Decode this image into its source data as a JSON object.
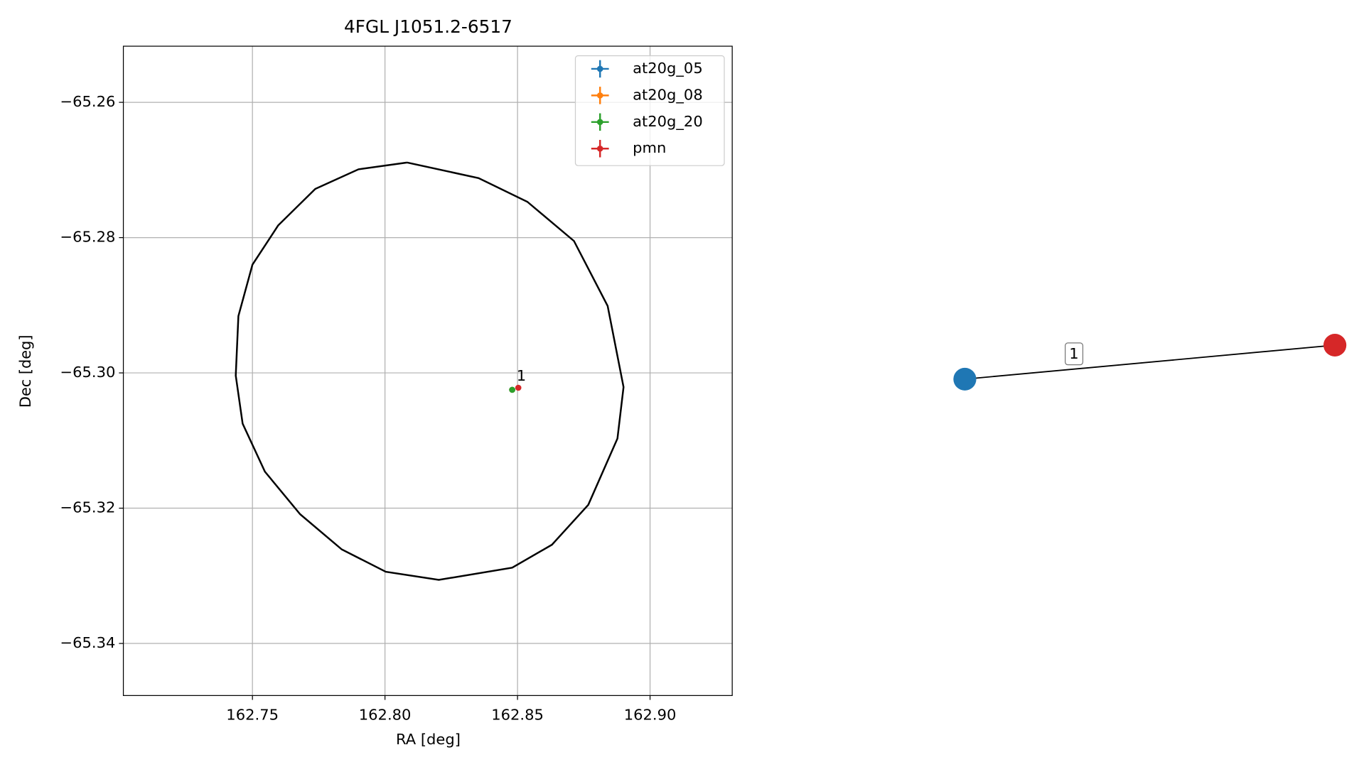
{
  "chart_data": [
    {
      "type": "scatter",
      "title": "4FGL J1051.2-6517",
      "xlabel": "RA [deg]",
      "ylabel": "Dec [deg]",
      "xlim": [
        162.7013,
        162.931
      ],
      "ylim": [
        -65.3477,
        -65.2517
      ],
      "xticks": [
        162.75,
        {
          "value": 162.8,
          "label": "162.80"
        },
        162.85,
        {
          "value": 162.9,
          "label": "162.90"
        }
      ],
      "yticks": [
        {
          "value": -65.26,
          "label": "−65.26"
        },
        {
          "value": -65.28,
          "label": "−65.28"
        },
        {
          "value": -65.3,
          "label": "−65.30"
        },
        {
          "value": -65.32,
          "label": "−65.32"
        },
        {
          "value": -65.34,
          "label": "−65.34"
        }
      ],
      "grid": true,
      "legend": "upper right",
      "series": [
        {
          "name": "at20g_05",
          "color": "#1f77b4",
          "x": [
            162.848
          ],
          "y": [
            -65.3025
          ]
        },
        {
          "name": "at20g_08",
          "color": "#ff7f0e",
          "x": [
            162.848
          ],
          "y": [
            -65.3025
          ]
        },
        {
          "name": "at20g_20",
          "color": "#2ca02c",
          "x": [
            162.848
          ],
          "y": [
            -65.3025
          ]
        },
        {
          "name": "pmn",
          "color": "#d62728",
          "x": [
            162.8503
          ],
          "y": [
            -65.3022
          ]
        }
      ],
      "annotations": [
        {
          "text": "1",
          "x": 162.8503,
          "y": -65.3022
        }
      ],
      "contour": {
        "color": "#000000",
        "x": [
          162.8083,
          162.8353,
          162.8537,
          162.8713,
          162.884,
          162.89,
          162.8877,
          162.8767,
          162.863,
          162.848,
          162.8203,
          162.8003,
          162.7837,
          162.768,
          162.7547,
          162.7463,
          162.7437,
          162.7447,
          162.75,
          162.7597,
          162.7737,
          162.79,
          162.8083
        ],
        "y": [
          -65.2689,
          -65.2712,
          -65.2747,
          -65.2805,
          -65.2901,
          -65.3021,
          -65.3097,
          -65.3195,
          -65.3254,
          -65.3288,
          -65.3306,
          -65.3294,
          -65.3261,
          -65.3209,
          -65.3146,
          -65.3075,
          -65.3004,
          -65.2916,
          -65.284,
          -65.2782,
          -65.2728,
          -65.2699,
          -65.2689
        ]
      }
    },
    {
      "type": "graph",
      "node_colors": [
        "#1f77b4",
        "#d62728"
      ],
      "edges": [
        {
          "source": 0,
          "target": 1,
          "label": "1"
        }
      ]
    }
  ]
}
